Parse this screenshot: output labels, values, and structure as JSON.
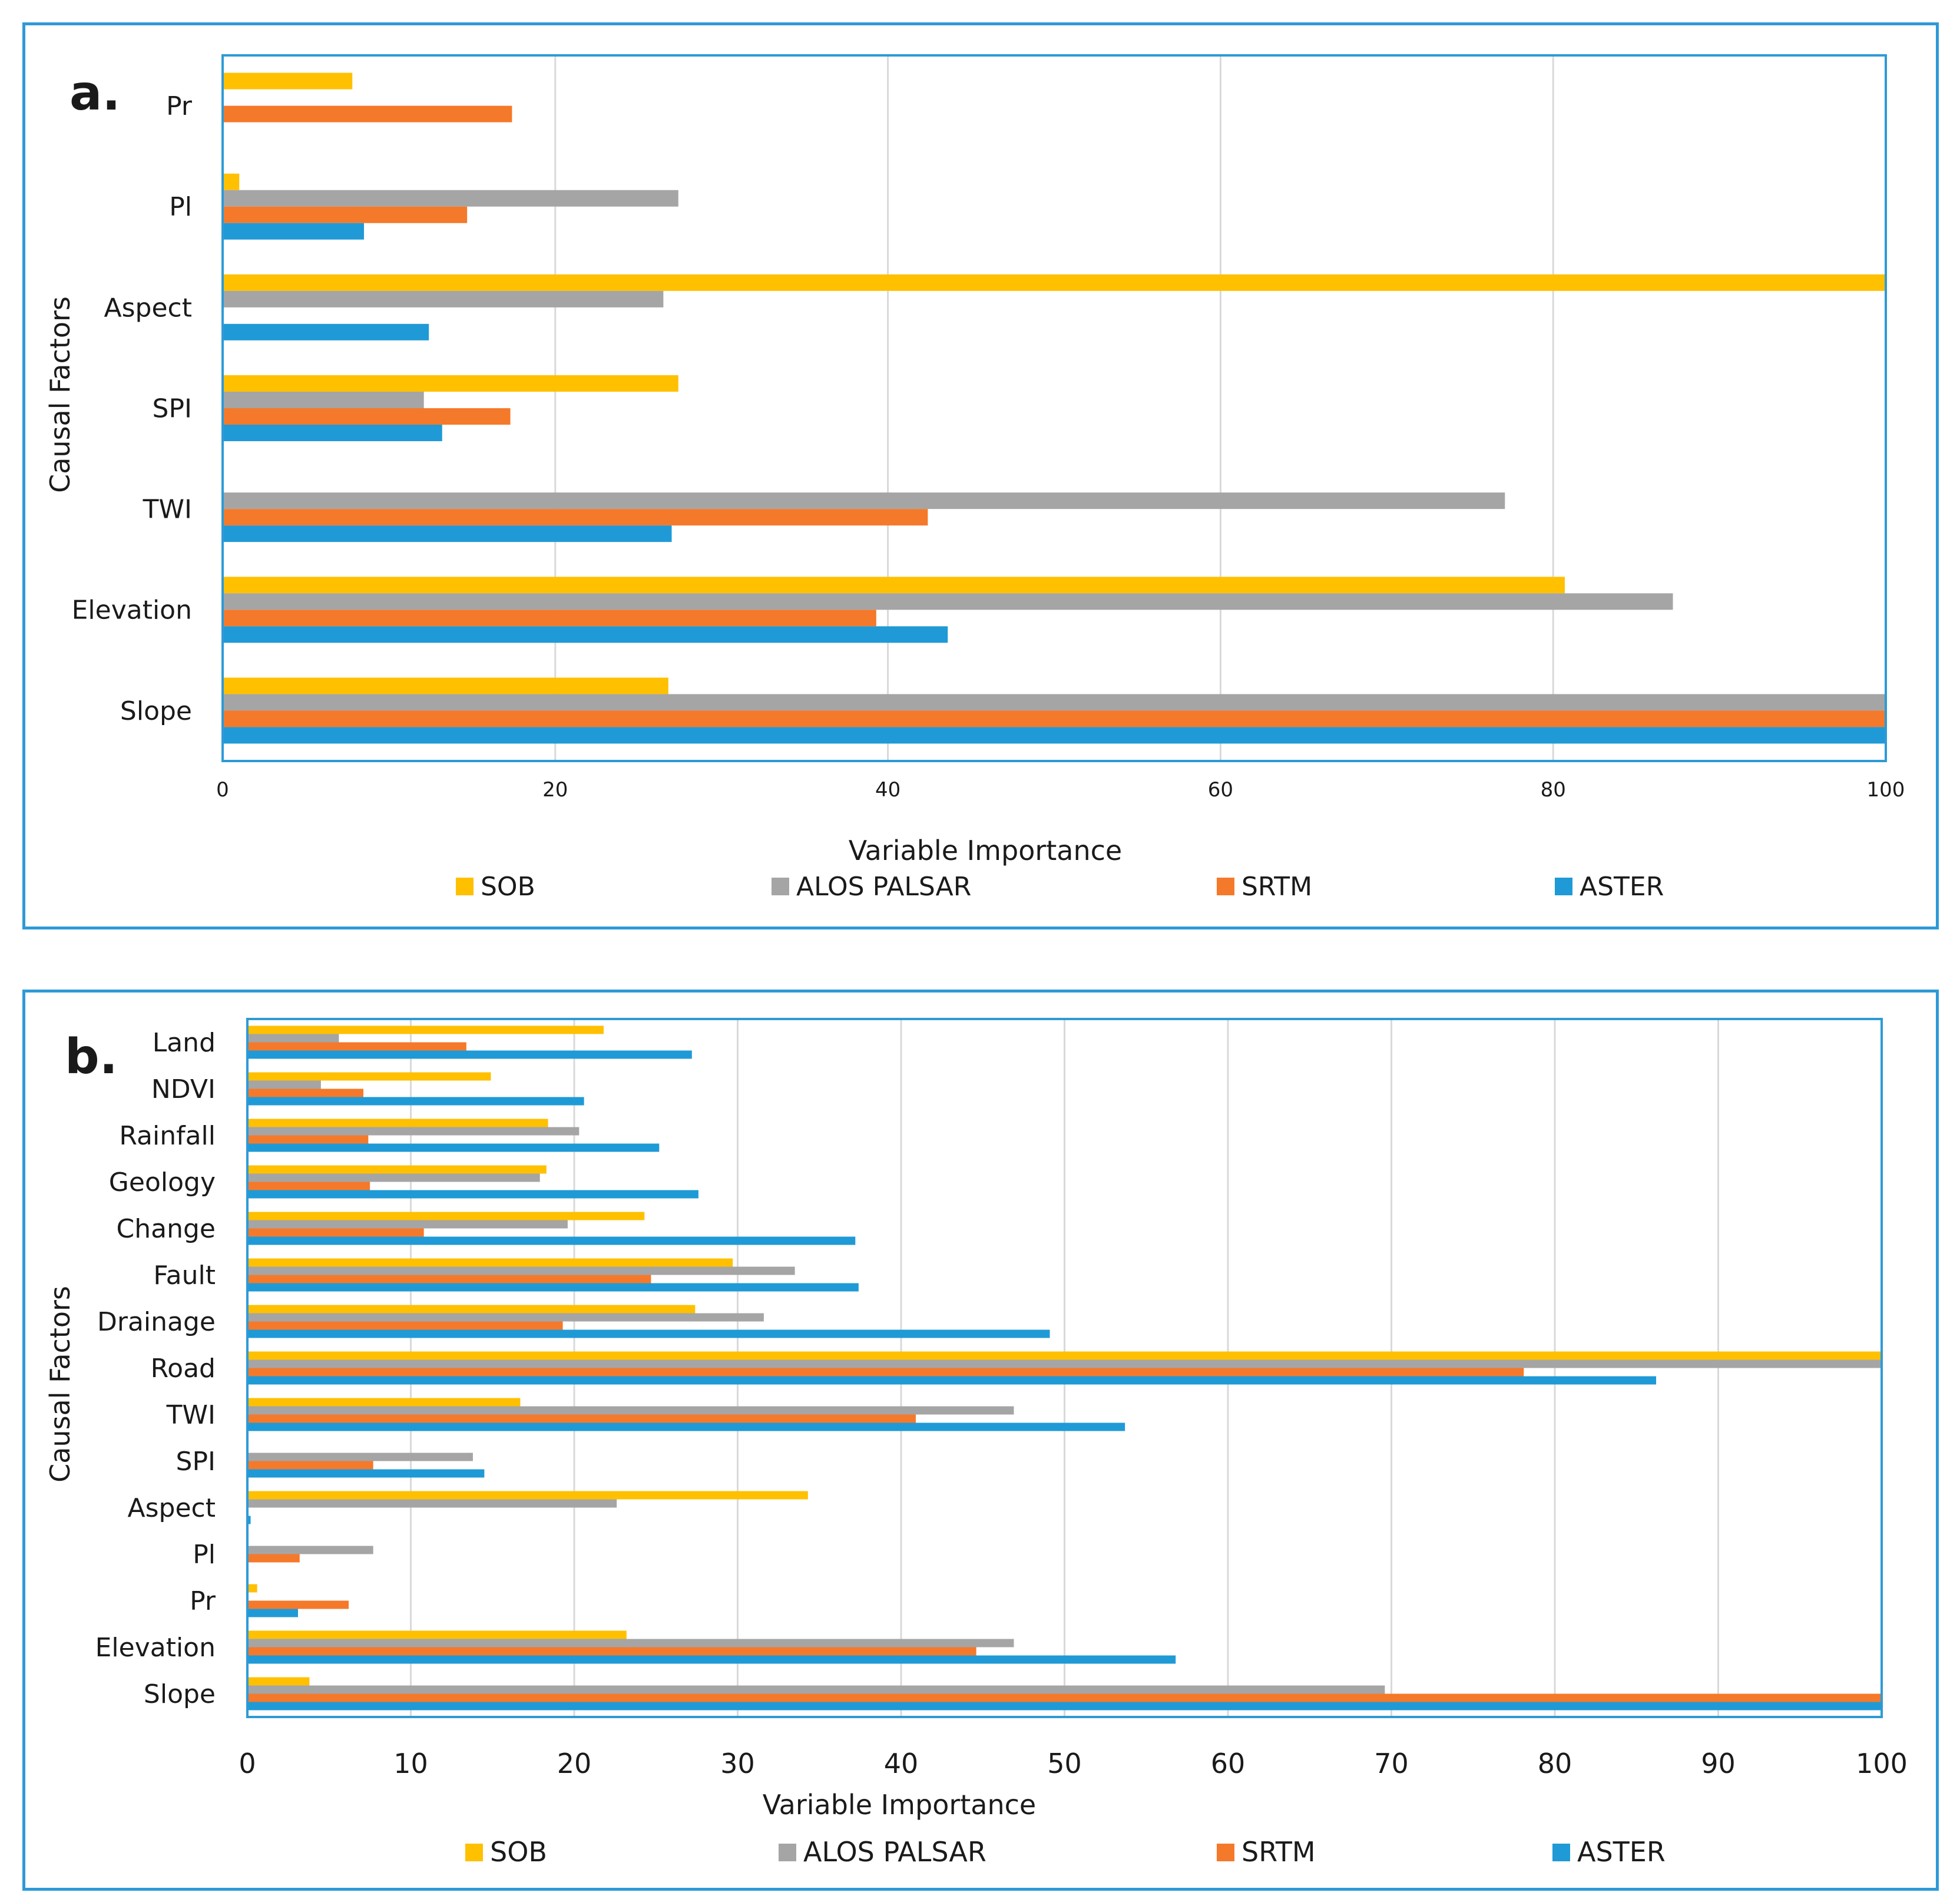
{
  "colors": {
    "SOB": "#ffc000",
    "ALOS PALSAR": "#a5a5a5",
    "SRTM": "#f5792a",
    "ASTER": "#1f9ad6",
    "grid": "#d9d9d9",
    "frame": "#2e9ad6"
  },
  "chart_data": [
    {
      "type": "bar",
      "orientation": "horizontal",
      "panel_label": "a.",
      "xlabel": "Variable Importance",
      "ylabel": "Causal Factors",
      "xlim": [
        0,
        100
      ],
      "xticks": [
        0,
        20,
        40,
        60,
        80,
        100
      ],
      "categories": [
        "Pr",
        "Pl",
        "Aspect",
        "SPI",
        "TWI",
        "Elevation",
        "Slope"
      ],
      "series": [
        {
          "name": "SOB",
          "values": [
            7.8,
            1.0,
            100,
            27.4,
            0,
            80.7,
            26.8
          ]
        },
        {
          "name": "ALOS PALSAR",
          "values": [
            0,
            27.4,
            26.5,
            12.1,
            77.1,
            87.2,
            100
          ]
        },
        {
          "name": "SRTM",
          "values": [
            17.4,
            14.7,
            0,
            17.3,
            42.4,
            39.3,
            100
          ]
        },
        {
          "name": "ASTER",
          "values": [
            0,
            8.5,
            12.4,
            13.2,
            27.0,
            43.6,
            100
          ]
        }
      ]
    },
    {
      "type": "bar",
      "orientation": "horizontal",
      "panel_label": "b.",
      "xlabel": "Variable Importance",
      "ylabel": "Causal Factors",
      "xlim": [
        0,
        100
      ],
      "xticks": [
        0,
        10,
        20,
        30,
        40,
        50,
        60,
        70,
        80,
        90,
        100
      ],
      "categories": [
        "Land",
        "NDVI",
        "Rainfall",
        "Geology",
        "Change",
        "Fault",
        "Drainage",
        "Road",
        "TWI",
        "SPI",
        "Aspect",
        "Pl",
        "Pr",
        "Elevation",
        "Slope"
      ],
      "series": [
        {
          "name": "SOB",
          "values": [
            21.8,
            14.9,
            18.4,
            18.3,
            24.3,
            29.7,
            27.4,
            100,
            16.7,
            0,
            34.3,
            0,
            0.6,
            23.2,
            3.8
          ]
        },
        {
          "name": "ALOS PALSAR",
          "values": [
            5.6,
            4.5,
            20.3,
            17.9,
            19.6,
            33.5,
            31.6,
            100,
            46.9,
            13.8,
            22.6,
            7.7,
            0,
            46.9,
            69.6
          ]
        },
        {
          "name": "SRTM",
          "values": [
            13.4,
            7.1,
            7.4,
            7.5,
            10.8,
            24.7,
            19.3,
            78.1,
            40.9,
            7.7,
            0,
            3.2,
            6.2,
            44.6,
            100
          ]
        },
        {
          "name": "ASTER",
          "values": [
            27.2,
            20.6,
            25.2,
            27.6,
            37.2,
            37.4,
            49.1,
            86.2,
            53.7,
            14.5,
            0.2,
            0,
            3.1,
            56.8,
            100
          ]
        }
      ]
    }
  ]
}
